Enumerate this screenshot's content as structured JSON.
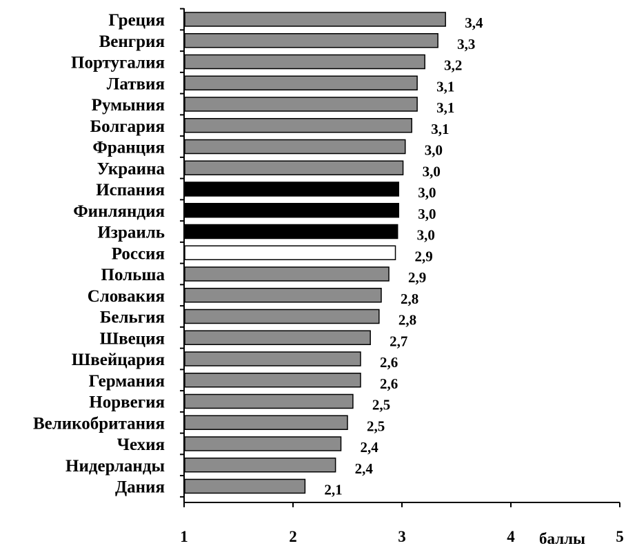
{
  "chart_data": {
    "type": "bar",
    "orientation": "horizontal",
    "categories": [
      "Греция",
      "Венгрия",
      "Португалия",
      "Латвия",
      "Румыния",
      "Болгария",
      "Франция",
      "Украина",
      "Испания",
      "Финляндия",
      "Израиль",
      "Россия",
      "Польша",
      "Словакия",
      "Бельгия",
      "Швеция",
      "Швейцария",
      "Германия",
      "Норвегия",
      "Великобритания",
      "Чехия",
      "Нидерланды",
      "Дания"
    ],
    "values": [
      3.4,
      3.33,
      3.21,
      3.14,
      3.14,
      3.09,
      3.03,
      3.01,
      2.97,
      2.97,
      2.96,
      2.94,
      2.88,
      2.81,
      2.79,
      2.71,
      2.62,
      2.62,
      2.55,
      2.5,
      2.44,
      2.39,
      2.11
    ],
    "value_labels": [
      "3,4",
      "3,3",
      "3,2",
      "3,1",
      "3,1",
      "3,1",
      "3,0",
      "3,0",
      "3,0",
      "3,0",
      "3,0",
      "2,9",
      "2,9",
      "2,8",
      "2,8",
      "2,7",
      "2,6",
      "2,6",
      "2,5",
      "2,5",
      "2,4",
      "2,4",
      "2,1"
    ],
    "bar_styles": [
      "gray",
      "gray",
      "gray",
      "gray",
      "gray",
      "gray",
      "gray",
      "gray",
      "black",
      "black",
      "black",
      "white",
      "gray",
      "gray",
      "gray",
      "gray",
      "gray",
      "gray",
      "gray",
      "gray",
      "gray",
      "gray",
      "gray"
    ],
    "xlim": [
      1,
      5
    ],
    "x_ticks": [
      "1",
      "2",
      "3",
      "4",
      "5"
    ],
    "xlabel": "баллы",
    "ylabel": "",
    "title": "",
    "grid": false,
    "legend": "none",
    "colors": {
      "gray": "#8c8c8c",
      "black": "#000000",
      "white": "#ffffff",
      "outline": "#000000"
    }
  }
}
